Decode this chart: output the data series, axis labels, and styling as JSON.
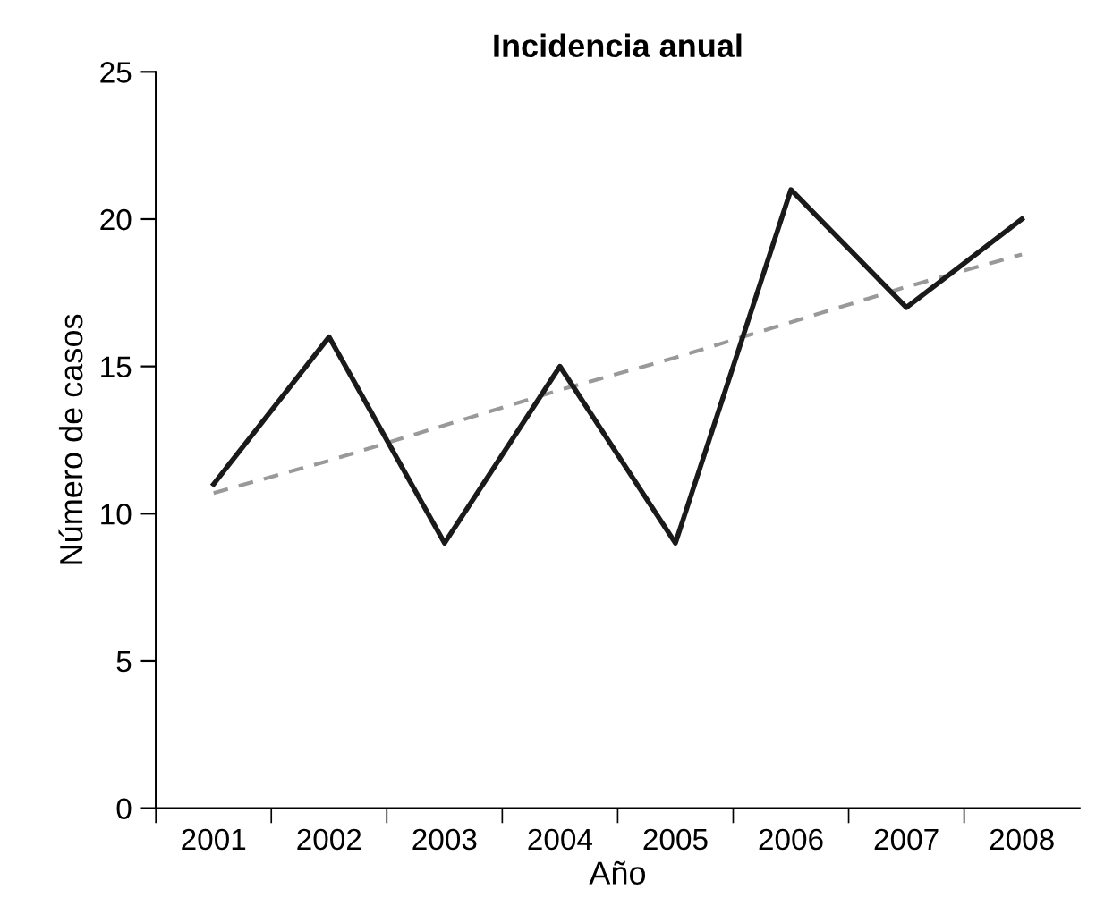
{
  "chart_data": {
    "type": "line",
    "title": "Incidencia anual",
    "xlabel": "Año",
    "ylabel": "Número de casos",
    "categories": [
      "2001",
      "2002",
      "2003",
      "2004",
      "2005",
      "2006",
      "2007",
      "2008"
    ],
    "series": [
      {
        "color": "#1a1a1a",
        "values": [
          11,
          16,
          9,
          15,
          9,
          21,
          17,
          20
        ],
        "line_style": "solid"
      },
      {
        "color": "#999999",
        "values": [
          10.7,
          11.8,
          13.0,
          14.2,
          15.3,
          16.5,
          17.7,
          18.8
        ],
        "line_style": "dashed"
      }
    ],
    "ylim": [
      0,
      25
    ],
    "yticks": [
      0,
      5,
      10,
      15,
      20,
      25
    ],
    "grid": false,
    "legend": false,
    "marker": "none"
  }
}
